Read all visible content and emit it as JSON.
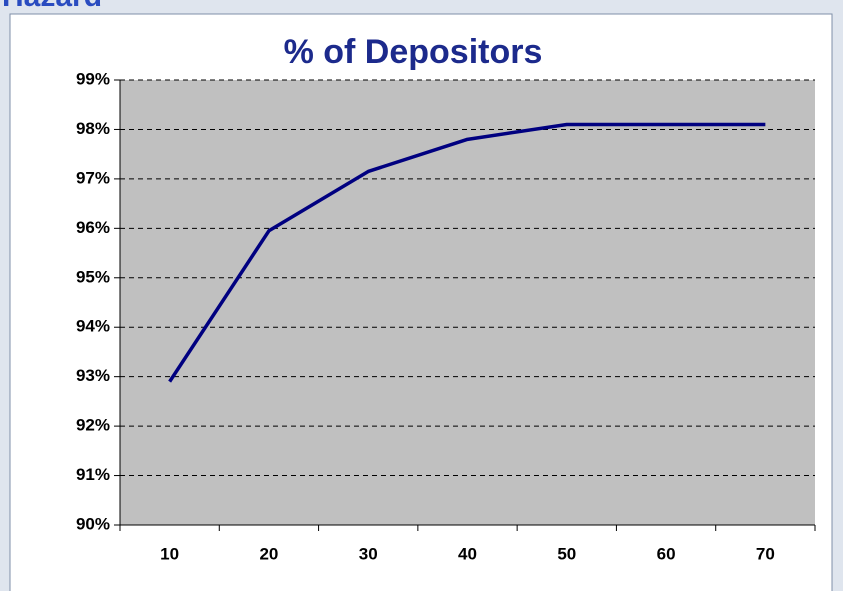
{
  "header": {
    "text": "Hazard"
  },
  "chart_data": {
    "type": "line",
    "title": "% of Depositors",
    "categories": [
      "10",
      "20",
      "30",
      "40",
      "50",
      "60",
      "70"
    ],
    "series": [
      {
        "name": "% of Depositors",
        "color": "#000080",
        "values": [
          92.9,
          95.95,
          97.15,
          97.8,
          98.1,
          98.1,
          98.1
        ]
      }
    ],
    "ylim": [
      90,
      99
    ],
    "yticks": [
      {
        "value": 90,
        "label": "90%"
      },
      {
        "value": 91,
        "label": "91%"
      },
      {
        "value": 92,
        "label": "92%"
      },
      {
        "value": 93,
        "label": "93%"
      },
      {
        "value": 94,
        "label": "94%"
      },
      {
        "value": 95,
        "label": "95%"
      },
      {
        "value": 96,
        "label": "96%"
      },
      {
        "value": 97,
        "label": "97%"
      },
      {
        "value": 98,
        "label": "98%"
      },
      {
        "value": 99,
        "label": "99%"
      }
    ],
    "grid": true
  }
}
